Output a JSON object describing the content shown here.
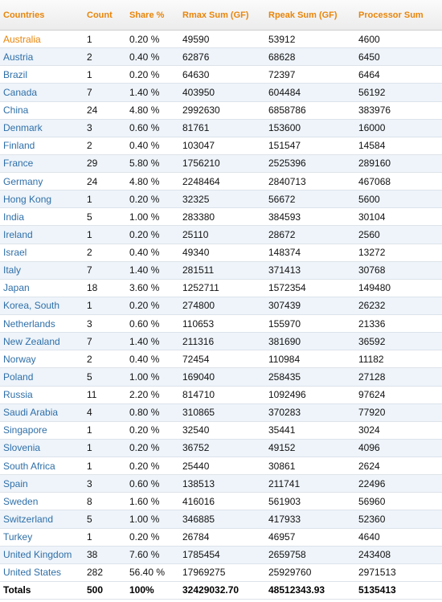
{
  "table": {
    "header": [
      "Countries",
      "Count",
      "Share %",
      "Rmax Sum (GF)",
      "Rpeak Sum (GF)",
      "Processor Sum"
    ],
    "rows": [
      [
        "Australia",
        "1",
        "0.20 %",
        "49590",
        "53912",
        "4600"
      ],
      [
        "Austria",
        "2",
        "0.40 %",
        "62876",
        "68628",
        "6450"
      ],
      [
        "Brazil",
        "1",
        "0.20 %",
        "64630",
        "72397",
        "6464"
      ],
      [
        "Canada",
        "7",
        "1.40 %",
        "403950",
        "604484",
        "56192"
      ],
      [
        "China",
        "24",
        "4.80 %",
        "2992630",
        "6858786",
        "383976"
      ],
      [
        "Denmark",
        "3",
        "0.60 %",
        "81761",
        "153600",
        "16000"
      ],
      [
        "Finland",
        "2",
        "0.40 %",
        "103047",
        "151547",
        "14584"
      ],
      [
        "France",
        "29",
        "5.80 %",
        "1756210",
        "2525396",
        "289160"
      ],
      [
        "Germany",
        "24",
        "4.80 %",
        "2248464",
        "2840713",
        "467068"
      ],
      [
        "Hong Kong",
        "1",
        "0.20 %",
        "32325",
        "56672",
        "5600"
      ],
      [
        "India",
        "5",
        "1.00 %",
        "283380",
        "384593",
        "30104"
      ],
      [
        "Ireland",
        "1",
        "0.20 %",
        "25110",
        "28672",
        "2560"
      ],
      [
        "Israel",
        "2",
        "0.40 %",
        "49340",
        "148374",
        "13272"
      ],
      [
        "Italy",
        "7",
        "1.40 %",
        "281511",
        "371413",
        "30768"
      ],
      [
        "Japan",
        "18",
        "3.60 %",
        "1252711",
        "1572354",
        "149480"
      ],
      [
        "Korea, South",
        "1",
        "0.20 %",
        "274800",
        "307439",
        "26232"
      ],
      [
        "Netherlands",
        "3",
        "0.60 %",
        "110653",
        "155970",
        "21336"
      ],
      [
        "New Zealand",
        "7",
        "1.40 %",
        "211316",
        "381690",
        "36592"
      ],
      [
        "Norway",
        "2",
        "0.40 %",
        "72454",
        "110984",
        "11182"
      ],
      [
        "Poland",
        "5",
        "1.00 %",
        "169040",
        "258435",
        "27128"
      ],
      [
        "Russia",
        "11",
        "2.20 %",
        "814710",
        "1092496",
        "97624"
      ],
      [
        "Saudi Arabia",
        "4",
        "0.80 %",
        "310865",
        "370283",
        "77920"
      ],
      [
        "Singapore",
        "1",
        "0.20 %",
        "32540",
        "35441",
        "3024"
      ],
      [
        "Slovenia",
        "1",
        "0.20 %",
        "36752",
        "49152",
        "4096"
      ],
      [
        "South Africa",
        "1",
        "0.20 %",
        "25440",
        "30861",
        "2624"
      ],
      [
        "Spain",
        "3",
        "0.60 %",
        "138513",
        "211741",
        "22496"
      ],
      [
        "Sweden",
        "8",
        "1.60 %",
        "416016",
        "561903",
        "56960"
      ],
      [
        "Switzerland",
        "5",
        "1.00 %",
        "346885",
        "417933",
        "52360"
      ],
      [
        "Turkey",
        "1",
        "0.20 %",
        "26784",
        "46957",
        "4640"
      ],
      [
        "United Kingdom",
        "38",
        "7.60 %",
        "1785454",
        "2659758",
        "243408"
      ],
      [
        "United States",
        "282",
        "56.40 %",
        "17969275",
        "25929760",
        "2971513"
      ]
    ],
    "totals": [
      "Totals",
      "500",
      "100%",
      "32429032.70",
      "48512343.93",
      "5135413"
    ]
  }
}
